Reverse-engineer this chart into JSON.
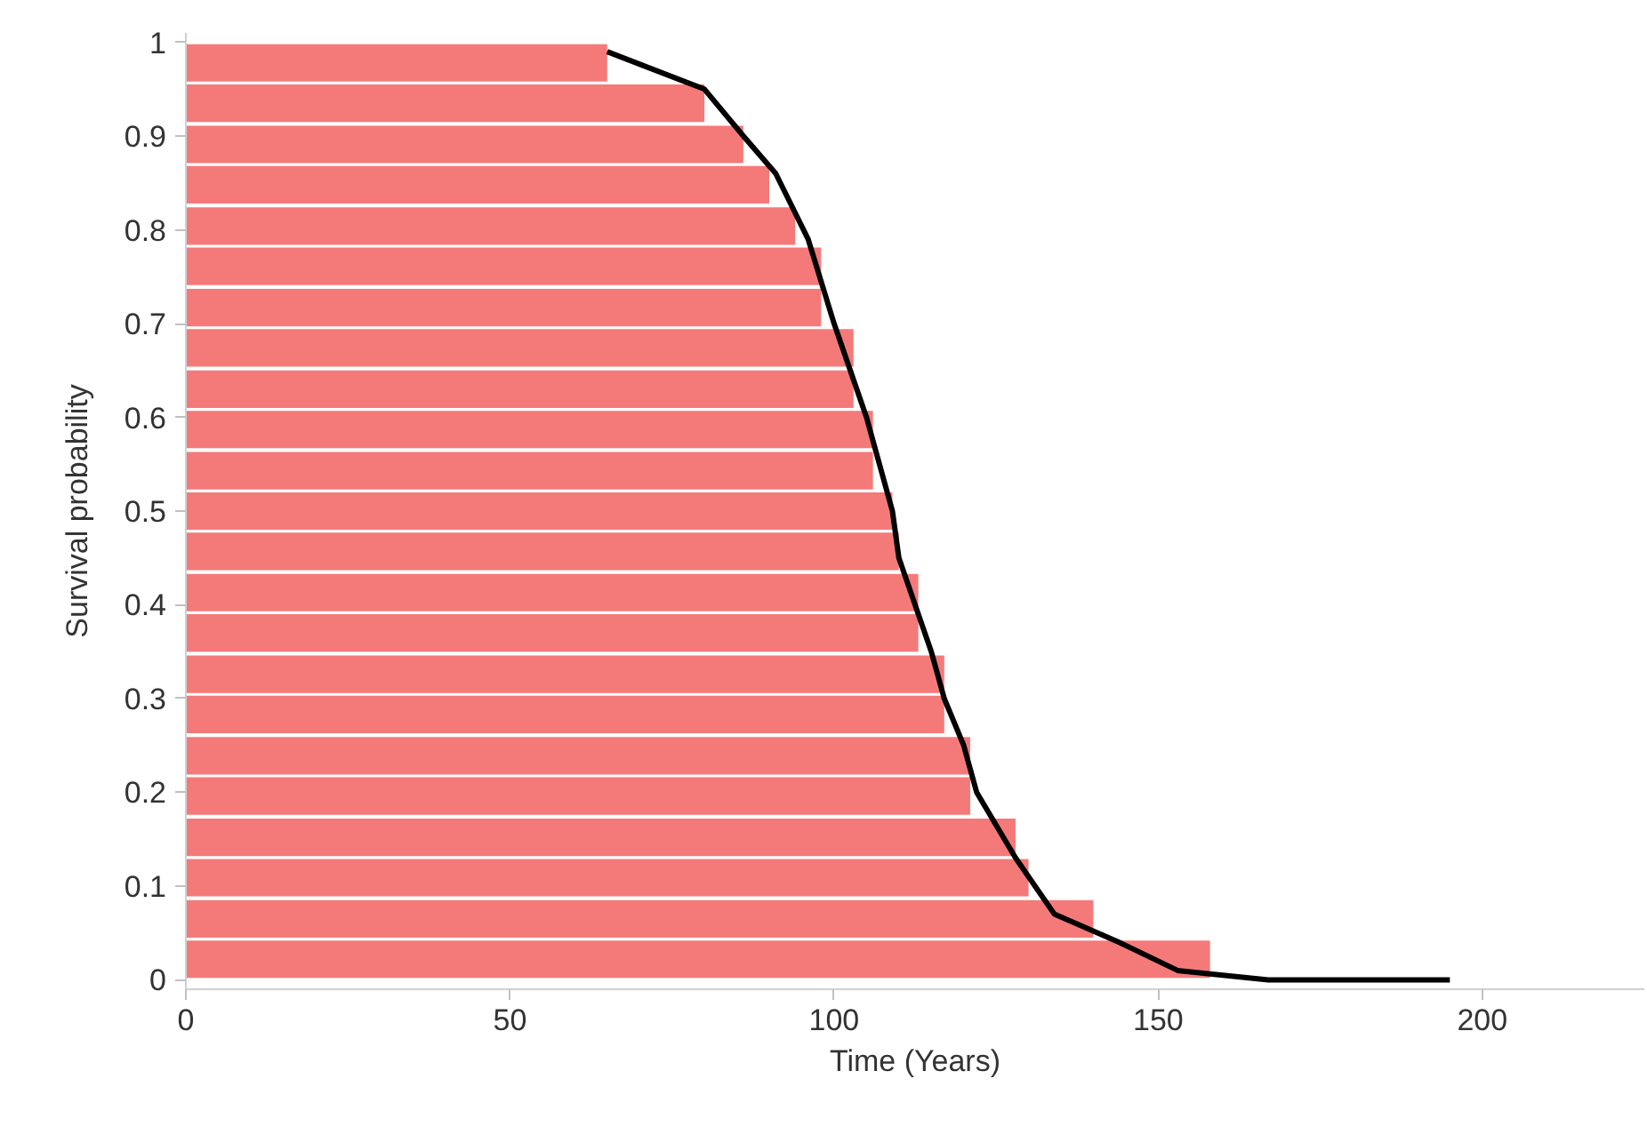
{
  "chart_data": {
    "type": "bar",
    "orientation": "horizontal",
    "xlabel": "Time (Years)",
    "ylabel": "Survival probability",
    "series": [
      {
        "color": "#f47a7a",
        "x": [
          0.978,
          0.935,
          0.891,
          0.848,
          0.804,
          0.761,
          0.717,
          0.674,
          0.63,
          0.587,
          0.543,
          0.5,
          0.457,
          0.413,
          0.37,
          0.326,
          0.283,
          0.239,
          0.196,
          0.152,
          0.109,
          0.065,
          0.022
        ],
        "values": [
          65,
          80,
          86,
          90,
          94,
          98,
          98,
          103,
          103,
          106,
          106,
          109,
          110,
          113,
          113,
          117,
          117,
          121,
          121,
          128,
          130,
          140,
          158
        ]
      },
      {
        "type": "line",
        "color": "#000000",
        "x": [
          0.99,
          0.95,
          0.9,
          0.86,
          0.79,
          0.7,
          0.6,
          0.5,
          0.45,
          0.35,
          0.3,
          0.25,
          0.2,
          0.13,
          0.07,
          0.04,
          0.01,
          0.0,
          0.0
        ],
        "values": [
          65,
          80,
          86,
          91,
          96,
          100,
          105,
          109,
          110,
          115,
          117,
          120,
          122,
          128,
          134,
          144,
          153,
          167,
          195
        ]
      }
    ],
    "xlim": [
      0,
      225
    ],
    "xticks": [
      0,
      50,
      100,
      150,
      200
    ],
    "ylim": [
      -0.01,
      1.01
    ],
    "yticks": [
      0,
      0.1,
      0.2,
      0.3,
      0.4,
      0.5,
      0.6,
      0.7,
      0.8,
      0.9,
      1
    ],
    "grid": false,
    "marker": "none",
    "line_style": "solid"
  }
}
